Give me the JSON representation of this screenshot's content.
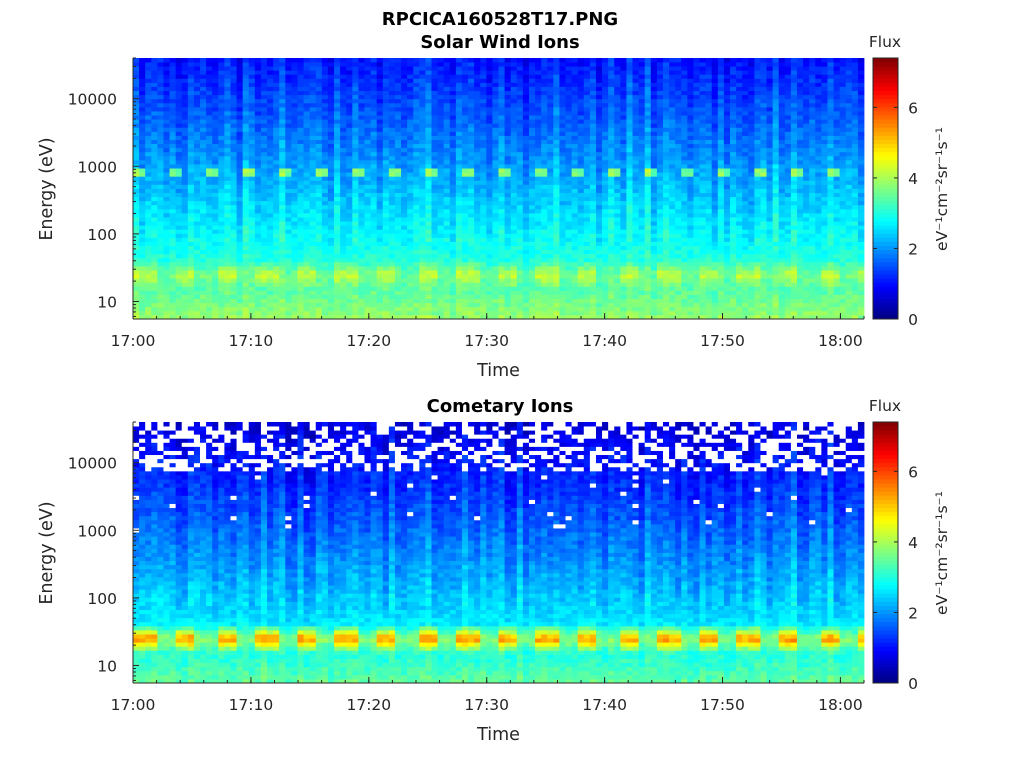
{
  "figure_title": "RPCICA160528T17.PNG",
  "chart_data": [
    {
      "type": "heatmap",
      "title": "Solar Wind Ions",
      "xlabel": "Time",
      "ylabel": "Energy (eV)",
      "x_ticks": [
        "17:00",
        "17:10",
        "17:20",
        "17:30",
        "17:40",
        "17:50",
        "18:00"
      ],
      "xlim": [
        "17:00",
        "18:02"
      ],
      "y_scale": "log",
      "y_ticks": [
        "10",
        "100",
        "1000",
        "10000"
      ],
      "ylim": [
        5.5,
        40000
      ],
      "grid": false,
      "colorbar": {
        "title": "Flux",
        "label": "eV⁻¹cm⁻²sr⁻¹s⁻¹",
        "ticks": [
          "0",
          "2",
          "4",
          "6"
        ],
        "range": [
          0,
          7.4
        ],
        "colormap": "jet"
      },
      "pattern": {
        "description_level": "approx",
        "low_energy_flux": 3.9,
        "high_energy_flux": 1.0,
        "band_near_800eV_flux": 3.6,
        "pulsed_peak_near_25eV_flux": 4.3
      }
    },
    {
      "type": "heatmap",
      "title": "Cometary Ions",
      "xlabel": "Time",
      "ylabel": "Energy (eV)",
      "x_ticks": [
        "17:00",
        "17:10",
        "17:20",
        "17:30",
        "17:40",
        "17:50",
        "18:00"
      ],
      "xlim": [
        "17:00",
        "18:02"
      ],
      "y_scale": "log",
      "y_ticks": [
        "10",
        "100",
        "1000",
        "10000"
      ],
      "ylim": [
        5.5,
        40000
      ],
      "grid": false,
      "colorbar": {
        "title": "Flux",
        "label": "eV⁻¹cm⁻²sr⁻¹s⁻¹",
        "ticks": [
          "0",
          "2",
          "4",
          "6"
        ],
        "range": [
          0,
          7.4
        ],
        "colormap": "jet"
      },
      "pattern": {
        "description_level": "approx",
        "low_energy_flux": 3.5,
        "high_energy_flux": 0.6,
        "pulsed_peak_near_25eV_flux": 5.6,
        "missing_data_above_eV": 8000
      }
    }
  ]
}
